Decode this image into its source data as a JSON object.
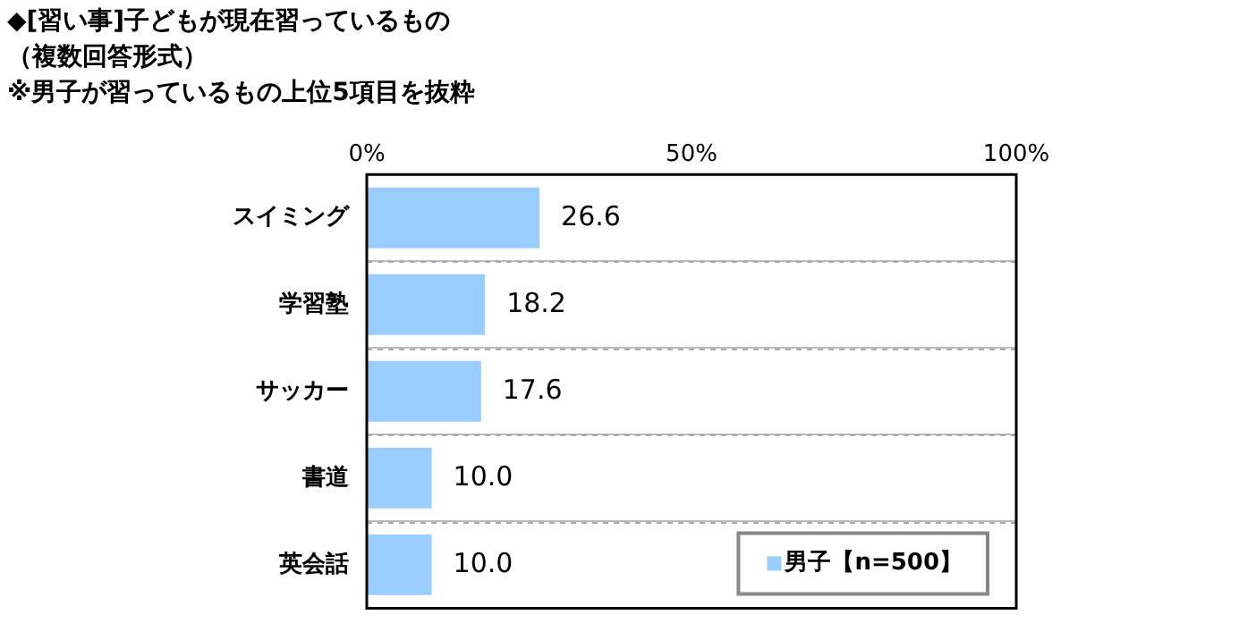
{
  "chart_data": {
    "type": "bar",
    "orientation": "horizontal",
    "title": "◆[習い事]子どもが現在習っているもの",
    "subtitle": "（複数回答形式）",
    "annotations": [
      "※男子が習っているもの上位5項目を抜粋"
    ],
    "categories": [
      "スイミング",
      "学習塾",
      "サッカー",
      "書道",
      "英会話"
    ],
    "series": [
      {
        "name": "男子【n=500】",
        "color": "#99ccff",
        "values": [
          26.6,
          18.2,
          17.6,
          10.0,
          10.0
        ]
      }
    ],
    "value_labels": [
      "26.6",
      "18.2",
      "17.6",
      "10.0",
      "10.0"
    ],
    "xlim": [
      0,
      100
    ],
    "xticks": [
      {
        "value": 0,
        "label": "0%"
      },
      {
        "value": 50,
        "label": "50%"
      },
      {
        "value": 100,
        "label": "100%"
      }
    ],
    "grid": "y",
    "legend": "bottom right"
  }
}
